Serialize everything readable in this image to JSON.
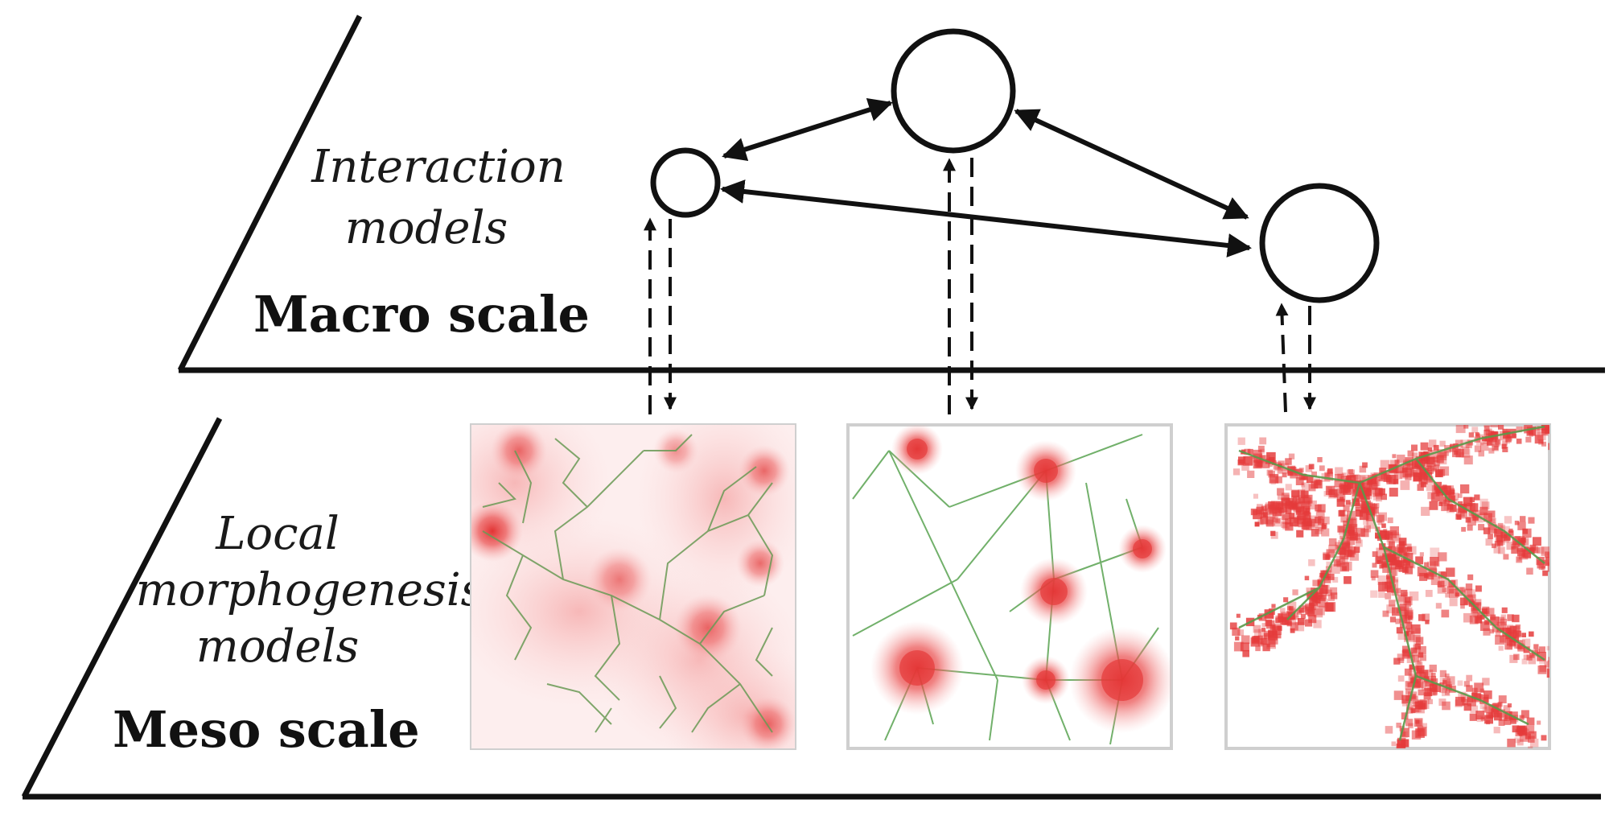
{
  "macro": {
    "models_line1": "Interaction",
    "models_line2": "models",
    "scale_label": "Macro scale"
  },
  "meso": {
    "models_line1": "Local",
    "models_line2": "morphogenesis",
    "models_line3": "models",
    "scale_label": "Meso scale"
  },
  "colors": {
    "ink": "#111111",
    "density": "#e8423f",
    "network": "#4caf50",
    "panel_border": "#cfcfcf"
  }
}
